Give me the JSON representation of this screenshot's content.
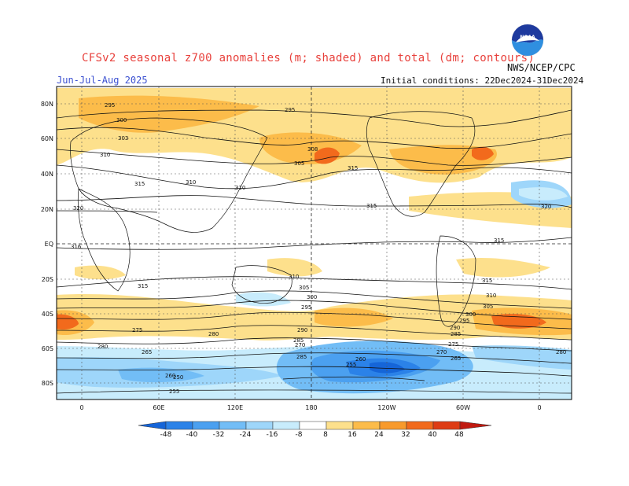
{
  "header": {
    "title": "CFSv2 seasonal z700 anomalies (m; shaded) and total (dm; contours)",
    "season": "Jun-Jul-Aug 2025",
    "initial_conditions": "Initial conditions: 22Dec2024-31Dec2024",
    "agency": "NWS/NCEP/CPC",
    "logo_text": "NOAA"
  },
  "map": {
    "lat_labels": [
      "80N",
      "60N",
      "40N",
      "20N",
      "EQ",
      "20S",
      "40S",
      "60S",
      "80S"
    ],
    "lon_labels": [
      "0",
      "60E",
      "120E",
      "180",
      "120W",
      "60W",
      "0"
    ],
    "contour_labels": [
      "295",
      "300",
      "303",
      "310",
      "315",
      "310",
      "310",
      "320",
      "316",
      "315",
      "310",
      "305",
      "300",
      "295",
      "290",
      "285",
      "280",
      "270",
      "265",
      "260",
      "255",
      "250",
      "295",
      "308",
      "305",
      "315",
      "285",
      "290",
      "295",
      "300",
      "305",
      "310",
      "315",
      "315",
      "320",
      "315",
      "275",
      "280",
      "270",
      "265",
      "255",
      "260",
      "285",
      "280",
      "275"
    ]
  },
  "colorbar": {
    "values": [
      "-48",
      "-40",
      "-32",
      "-24",
      "-16",
      "-8",
      "8",
      "16",
      "24",
      "32",
      "40",
      "48"
    ],
    "colors": [
      "#1565d8",
      "#2b82e8",
      "#4ba0f0",
      "#72bdf6",
      "#9ed6fa",
      "#c8ecfc",
      "#ffffff",
      "#fde08c",
      "#fcbc4a",
      "#f89a2c",
      "#f26a1c",
      "#de3c14",
      "#c01a10"
    ]
  }
}
